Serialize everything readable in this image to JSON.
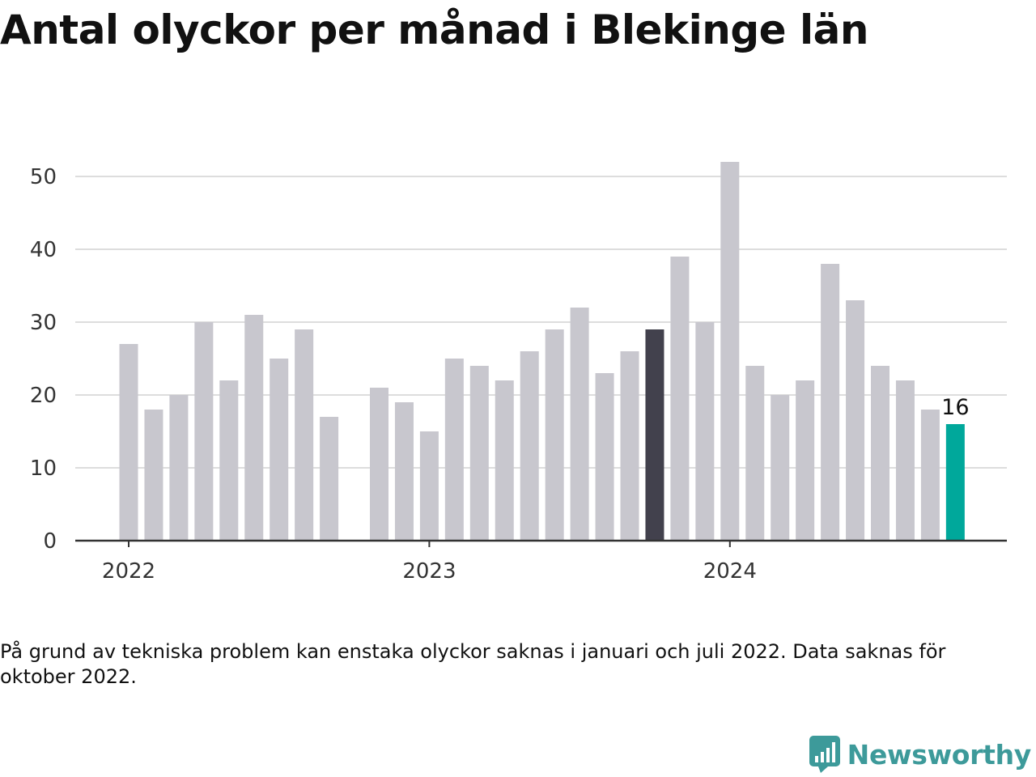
{
  "title": "Antal olyckor per månad i Blekinge län",
  "note": "På grund av tekniska problem kan enstaka olyckor saknas i januari och juli 2022. Data saknas för oktober 2022.",
  "brand": {
    "name": "Newsworthy",
    "icon": "bar-chart-speech-bubble-icon"
  },
  "colors": {
    "bar": "#c8c7ce",
    "highlight_dark": "#42414d",
    "highlight_current": "#00a89b",
    "grid": "#dddddd",
    "axis": "#333333"
  },
  "chart_data": {
    "type": "bar",
    "title": "Antal olyckor per månad i Blekinge län",
    "xlabel": "",
    "ylabel": "",
    "ylim": [
      0,
      50
    ],
    "yticks": [
      0,
      10,
      20,
      30,
      40,
      50
    ],
    "xticks": [
      {
        "label": "2022",
        "month": "2022-01"
      },
      {
        "label": "2023",
        "month": "2023-01"
      },
      {
        "label": "2024",
        "month": "2024-01"
      }
    ],
    "grid": true,
    "months": [
      "2022-01",
      "2022-02",
      "2022-03",
      "2022-04",
      "2022-05",
      "2022-06",
      "2022-07",
      "2022-08",
      "2022-09",
      "2022-10",
      "2022-11",
      "2022-12",
      "2023-01",
      "2023-02",
      "2023-03",
      "2023-04",
      "2023-05",
      "2023-06",
      "2023-07",
      "2023-08",
      "2023-09",
      "2023-10",
      "2023-11",
      "2023-12",
      "2024-01",
      "2024-02",
      "2024-03",
      "2024-04",
      "2024-05",
      "2024-06",
      "2024-07",
      "2024-08",
      "2024-09",
      "2024-10"
    ],
    "values": [
      27,
      18,
      20,
      30,
      22,
      31,
      25,
      29,
      17,
      null,
      21,
      19,
      15,
      25,
      24,
      22,
      26,
      29,
      32,
      23,
      26,
      29,
      39,
      30,
      52,
      24,
      20,
      22,
      38,
      33,
      24,
      22,
      18,
      16
    ],
    "highlight_dark": "2023-10",
    "highlight_current": "2024-10",
    "data_labels": [
      {
        "month": "2024-10",
        "text": "16"
      }
    ]
  }
}
